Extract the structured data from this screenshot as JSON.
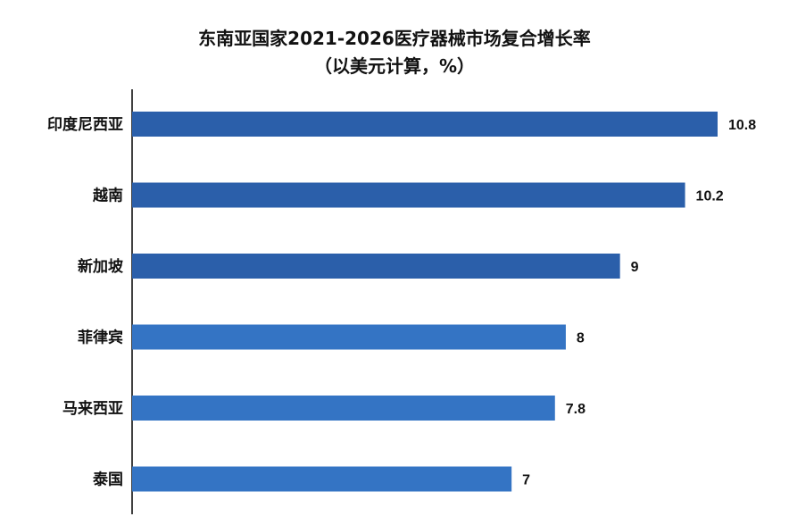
{
  "chart_data": {
    "type": "bar",
    "orientation": "horizontal",
    "title": "东南亚国家2021-2026医疗器械市场复合增长率",
    "subtitle": "（以美元计算，%）",
    "categories": [
      "印度尼西亚",
      "越南",
      "新加坡",
      "菲律宾",
      "马来西亚",
      "泰国"
    ],
    "values": [
      10.8,
      10.2,
      9,
      8,
      7.8,
      7
    ],
    "value_labels": [
      "10.8",
      "10.2",
      "9",
      "8",
      "7.8",
      "7"
    ],
    "xlim": [
      0,
      11
    ],
    "grid": false,
    "legend": "none",
    "colors": {
      "dark_bar": "#2b5faa",
      "light_bar": "#3474c4",
      "axis": "#000000"
    },
    "bar_colors": [
      "#2b5faa",
      "#2b5faa",
      "#2b5faa",
      "#3474c4",
      "#3474c4",
      "#3474c4"
    ]
  }
}
